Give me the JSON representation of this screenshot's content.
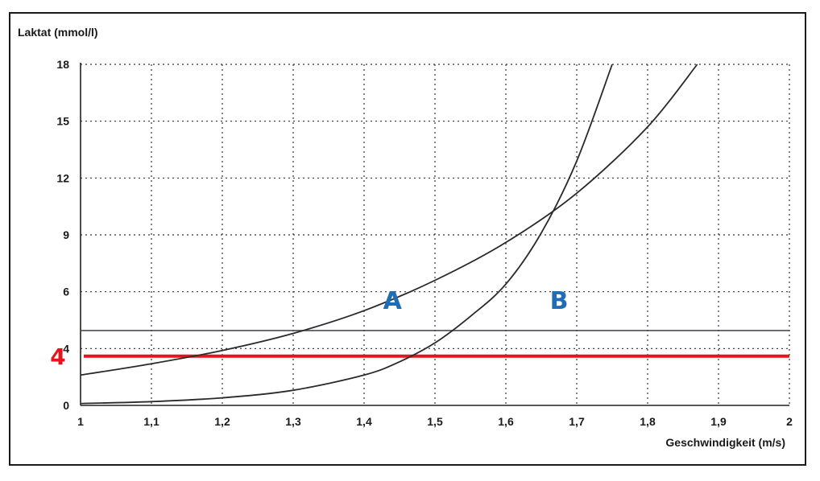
{
  "chart_data": {
    "type": "line",
    "ylabel": "Laktat (mmol/l)",
    "xlabel": "Geschwindigkeit (m/s)",
    "xlim": [
      1,
      2
    ],
    "ylim": [
      0,
      18
    ],
    "x_ticks": [
      "1",
      "1,1",
      "1,2",
      "1,3",
      "1,4",
      "1,5",
      "1,6",
      "1,7",
      "1,8",
      "1,9",
      "2"
    ],
    "y_ticks": [
      "0",
      "4",
      "6",
      "9",
      "12",
      "15",
      "18"
    ],
    "grid": true,
    "series": [
      {
        "name": "A",
        "x": [
          1.0,
          1.1,
          1.2,
          1.3,
          1.4,
          1.5,
          1.6,
          1.7,
          1.8,
          1.87
        ],
        "y": [
          1.6,
          2.2,
          2.9,
          3.8,
          5.0,
          6.6,
          8.6,
          11.2,
          14.7,
          18.0
        ]
      },
      {
        "name": "B",
        "x": [
          1.0,
          1.1,
          1.2,
          1.3,
          1.4,
          1.45,
          1.5,
          1.55,
          1.6,
          1.65,
          1.7,
          1.75
        ],
        "y": [
          0.1,
          0.2,
          0.4,
          0.8,
          1.6,
          2.3,
          3.3,
          4.7,
          6.4,
          9.1,
          12.9,
          18.0
        ]
      }
    ],
    "reference_lines": [
      {
        "y": 3.95,
        "color": "#4a4a5a"
      },
      {
        "y": 2.6,
        "label": "4",
        "color": "#e8141c"
      }
    ]
  }
}
